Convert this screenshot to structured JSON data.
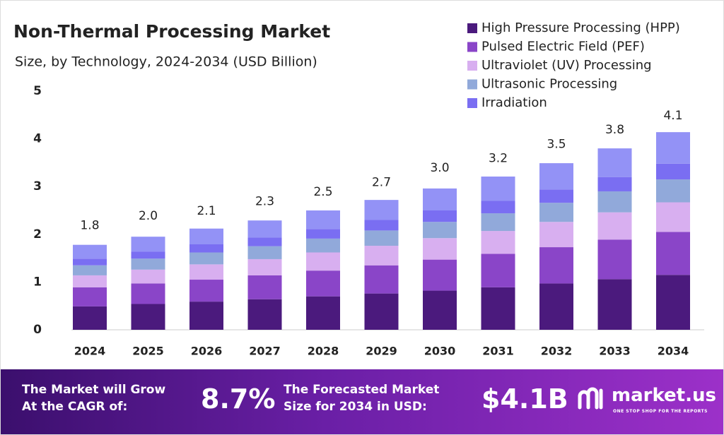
{
  "chart_data": {
    "type": "stacked_bar",
    "title": "Non-Thermal Processing Market",
    "subtitle": "Size, by Technology, 2024-2034 (USD Billion)",
    "categories": [
      "2024",
      "2025",
      "2026",
      "2027",
      "2028",
      "2029",
      "2030",
      "2031",
      "2032",
      "2033",
      "2034"
    ],
    "series": [
      {
        "name": "High Pressure Processing (HPP)",
        "color": "#4b1a7d",
        "values": [
          0.49,
          0.54,
          0.59,
          0.64,
          0.7,
          0.76,
          0.82,
          0.89,
          0.97,
          1.06,
          1.15
        ]
      },
      {
        "name": "Pulsed Electric Field (PEF)",
        "color": "#8a45c8",
        "values": [
          0.4,
          0.43,
          0.46,
          0.5,
          0.54,
          0.59,
          0.65,
          0.7,
          0.76,
          0.83,
          0.9
        ]
      },
      {
        "name": "Ultraviolet (UV) Processing",
        "color": "#d8aff0",
        "values": [
          0.25,
          0.29,
          0.32,
          0.34,
          0.38,
          0.41,
          0.45,
          0.48,
          0.53,
          0.57,
          0.62
        ]
      },
      {
        "name": "Ultrasonic Processing",
        "color": "#91a9da",
        "values": [
          0.21,
          0.23,
          0.25,
          0.27,
          0.29,
          0.32,
          0.34,
          0.37,
          0.4,
          0.44,
          0.48
        ]
      },
      {
        "name": "Irradiation",
        "color": "#7a6ef2",
        "values": [
          0.14,
          0.15,
          0.17,
          0.18,
          0.2,
          0.22,
          0.24,
          0.26,
          0.28,
          0.3,
          0.33
        ]
      },
      {
        "color": "#9392f6",
        "values": [
          0.29,
          0.31,
          0.33,
          0.36,
          0.39,
          0.42,
          0.46,
          0.51,
          0.55,
          0.6,
          0.66
        ]
      }
    ],
    "totals": {
      "values": [
        1.8,
        2.0,
        2.1,
        2.3,
        2.5,
        2.7,
        3.0,
        3.2,
        3.5,
        3.8,
        4.1
      ],
      "value_labels": [
        "1.8",
        "2.0",
        "2.1",
        "2.3",
        "2.5",
        "2.7",
        "3.0",
        "3.2",
        "3.5",
        "3.8",
        "4.1"
      ]
    },
    "ylim": [
      0,
      5
    ],
    "yticks": [
      0,
      1,
      2,
      3,
      4,
      5
    ],
    "grid": false
  },
  "footer": {
    "cagr_text": [
      "The Market will Grow",
      "At the CAGR of:"
    ],
    "cagr_value": "8.7%",
    "forecast_text": [
      "The Forecasted Market",
      "Size for 2034 in USD:"
    ],
    "forecast_value": "$4.1B",
    "logo": "market.us",
    "tagline": "ONE STOP SHOP FOR THE REPORTS"
  }
}
